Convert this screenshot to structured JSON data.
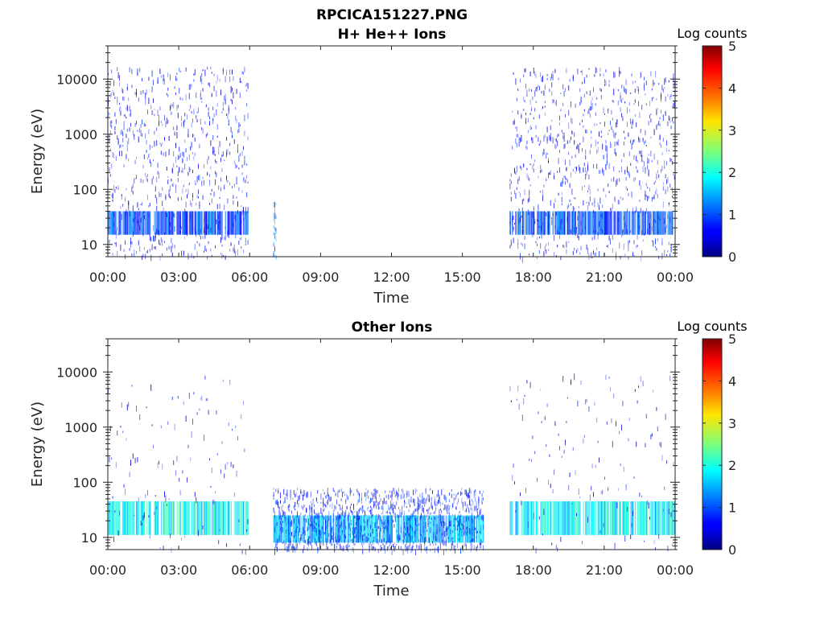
{
  "figure_title": "RPCICA151227.PNG",
  "chart_data": [
    {
      "type": "heatmap",
      "title": "H+ He++ Ions",
      "xlabel": "Time",
      "ylabel": "Energy (eV)",
      "x_ticks": [
        "00:00",
        "03:00",
        "06:00",
        "09:00",
        "12:00",
        "15:00",
        "18:00",
        "21:00",
        "00:00"
      ],
      "x_range_hours": [
        0,
        24
      ],
      "y_scale": "log",
      "y_range": [
        6,
        40000
      ],
      "y_ticks": [
        10,
        100,
        1000,
        10000
      ],
      "y_tick_labels": [
        "10",
        "100",
        "1000",
        "10000"
      ],
      "colorbar": {
        "label": "Log counts",
        "range": [
          0,
          5
        ],
        "ticks": [
          "0",
          "1",
          "2",
          "3",
          "4",
          "5"
        ],
        "colormap": "jet"
      },
      "regions": [
        {
          "t_start": 0.0,
          "t_end": 5.95,
          "e_min": 6,
          "e_max": 17000,
          "intensity": 0.55,
          "density": 0.55,
          "low_band": [
            15,
            40
          ],
          "low_band_intensity": 1.0
        },
        {
          "t_start": 7.0,
          "t_end": 7.12,
          "e_min": 6,
          "e_max": 60,
          "intensity": 1.2,
          "density": 0.9
        },
        {
          "t_start": 17.0,
          "t_end": 24.0,
          "e_min": 6,
          "e_max": 17000,
          "intensity": 0.55,
          "density": 0.55,
          "low_band": [
            15,
            40
          ],
          "low_band_intensity": 1.0
        }
      ]
    },
    {
      "type": "heatmap",
      "title": "Other Ions",
      "xlabel": "Time",
      "ylabel": "Energy (eV)",
      "x_ticks": [
        "00:00",
        "03:00",
        "06:00",
        "09:00",
        "12:00",
        "15:00",
        "18:00",
        "21:00",
        "00:00"
      ],
      "x_range_hours": [
        0,
        24
      ],
      "y_scale": "log",
      "y_range": [
        6,
        40000
      ],
      "y_ticks": [
        10,
        100,
        1000,
        10000
      ],
      "y_tick_labels": [
        "10",
        "100",
        "1000",
        "10000"
      ],
      "colorbar": {
        "label": "Log counts",
        "range": [
          0,
          5
        ],
        "ticks": [
          "0",
          "1",
          "2",
          "3",
          "4",
          "5"
        ],
        "colormap": "jet"
      },
      "regions": [
        {
          "t_start": 0.0,
          "t_end": 5.95,
          "e_min": 6,
          "e_max": 10000,
          "intensity": 0.45,
          "density": 0.12,
          "low_band": [
            11,
            45
          ],
          "low_band_intensity": 1.9
        },
        {
          "t_start": 7.0,
          "t_end": 15.9,
          "e_min": 6,
          "e_max": 80,
          "intensity": 0.7,
          "density": 0.55,
          "low_band": [
            8,
            25
          ],
          "low_band_intensity": 1.5
        },
        {
          "t_start": 17.0,
          "t_end": 24.0,
          "e_min": 6,
          "e_max": 10000,
          "intensity": 0.45,
          "density": 0.12,
          "low_band": [
            11,
            45
          ],
          "low_band_intensity": 1.8
        }
      ]
    }
  ]
}
